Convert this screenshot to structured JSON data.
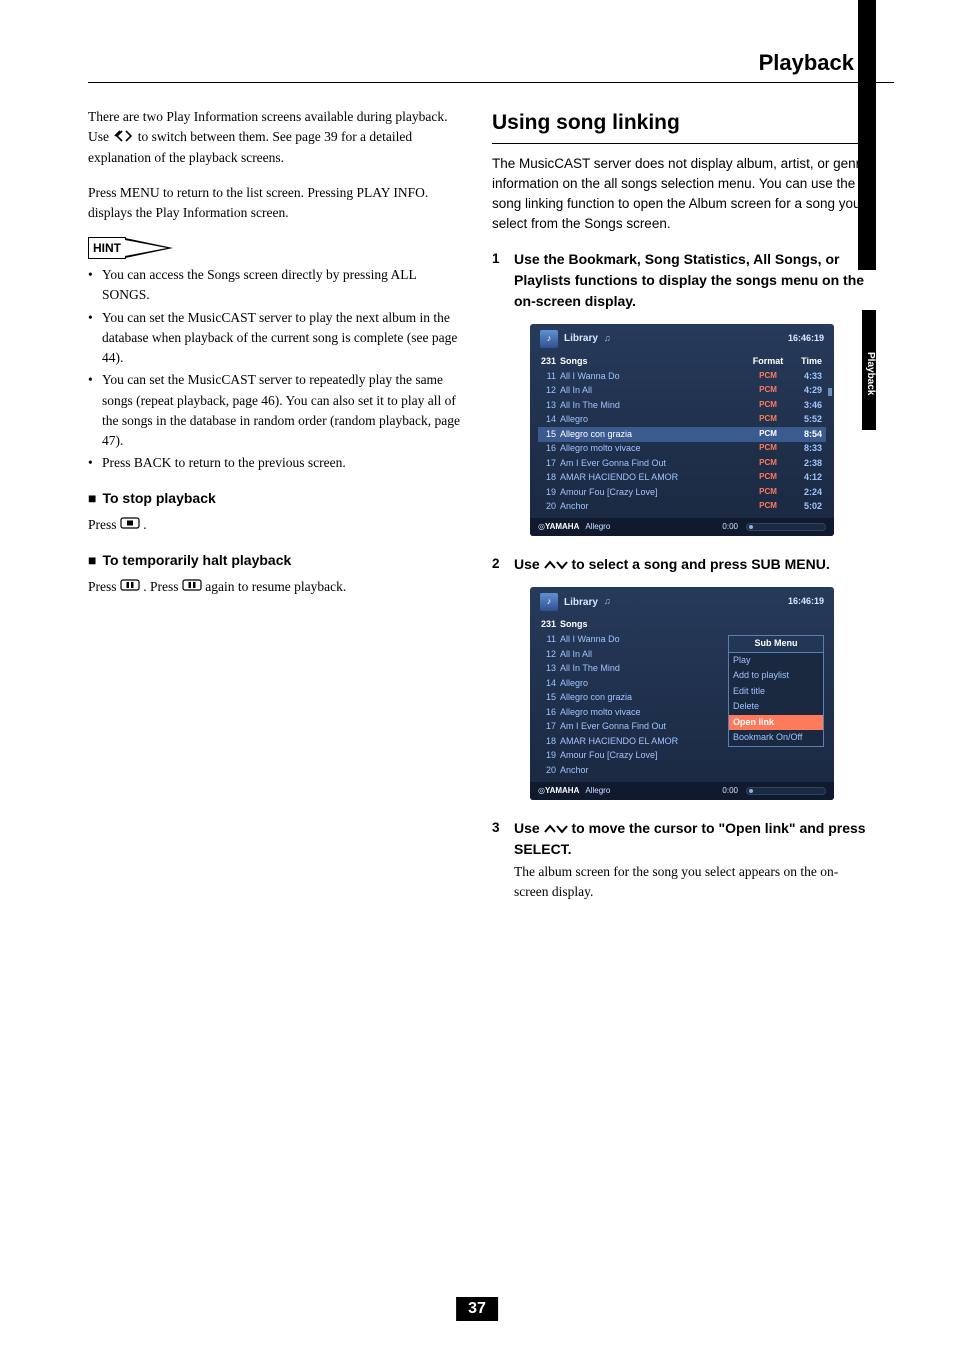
{
  "page": {
    "header": "Playback",
    "number": "37",
    "side_tab": "Playback"
  },
  "left": {
    "p1_a": "There are two Play Information screens available during playback. Use ",
    "p1_b": " to switch between them. See page 39 for a detailed explanation of the playback screens.",
    "p2": "Press MENU to return to the list screen. Pressing PLAY INFO. displays the Play Information screen.",
    "hint_label": "HINT",
    "hints": [
      "You can access the Songs screen directly by pressing ALL SONGS.",
      "You can set the MusicCAST server to play the next album in the database when playback of the current song is complete (see page 44).",
      "You can set the MusicCAST server to repeatedly play the same songs (repeat playback, page 46). You can also set it to play all of the songs in the database in random order (random playback, page 47).",
      "Press BACK to return to the previous screen."
    ],
    "stop_h": "To stop playback",
    "stop_a": "Press ",
    "stop_b": ".",
    "pause_h": "To temporarily halt playback",
    "pause_a": "Press ",
    "pause_b": ". Press ",
    "pause_c": " again to resume playback."
  },
  "right": {
    "section": "Using song linking",
    "intro": "The MusicCAST server does not display album, artist, or genre information on the all songs selection menu. You can use the song linking function to open the Album screen for a song you select from the Songs screen.",
    "step1_num": "1",
    "step1": "Use the Bookmark, Song Statistics, All Songs, or Playlists functions to display the songs menu on the on-screen display.",
    "step2_num": "2",
    "step2_a": "Use ",
    "step2_b": " to select a song and press SUB MENU.",
    "step3_num": "3",
    "step3_a": "Use ",
    "step3_b": " to move the cursor to \"Open link\" and press SELECT.",
    "step3_desc": "The album screen for the song you select appears on the on-screen display."
  },
  "screen_common": {
    "library": "Library",
    "clock": "16:46:19",
    "count": "231",
    "songs_h": "Songs",
    "format_h": "Format",
    "time_h": "Time",
    "brand": "YAMAHA",
    "now_title": "Allegro",
    "now_time": "0:00",
    "highlight_idx": 4
  },
  "songs": [
    {
      "n": "11",
      "t": "All I Wanna Do",
      "f": "PCM",
      "d": "4:33"
    },
    {
      "n": "12",
      "t": "All In All",
      "f": "PCM",
      "d": "4:29"
    },
    {
      "n": "13",
      "t": "All In The Mind",
      "f": "PCM",
      "d": "3:46"
    },
    {
      "n": "14",
      "t": "Allegro",
      "f": "PCM",
      "d": "5:52"
    },
    {
      "n": "15",
      "t": "Allegro con grazia",
      "f": "PCM",
      "d": "8:54"
    },
    {
      "n": "16",
      "t": "Allegro molto vivace",
      "f": "PCM",
      "d": "8:33"
    },
    {
      "n": "17",
      "t": "Am I Ever Gonna Find Out",
      "f": "PCM",
      "d": "2:38"
    },
    {
      "n": "18",
      "t": "AMAR  HACIENDO  EL  AMOR",
      "f": "PCM",
      "d": "4:12"
    },
    {
      "n": "19",
      "t": "Amour Fou [Crazy Love]",
      "f": "PCM",
      "d": "2:24"
    },
    {
      "n": "20",
      "t": "Anchor",
      "f": "PCM",
      "d": "5:02"
    }
  ],
  "submenu": {
    "header": "Sub Menu",
    "items": [
      "Play",
      "Add to playlist",
      "Edit title",
      "Delete",
      "Open link",
      "Bookmark On/Off"
    ],
    "highlight_idx": 4
  },
  "colors": {
    "screen_bg_top": "#263a5a",
    "screen_bg_bot": "#1a2840",
    "text_blue": "#9ec4ff",
    "accent_orange": "#ff7a5a",
    "row_hl": "#3a5a90"
  }
}
